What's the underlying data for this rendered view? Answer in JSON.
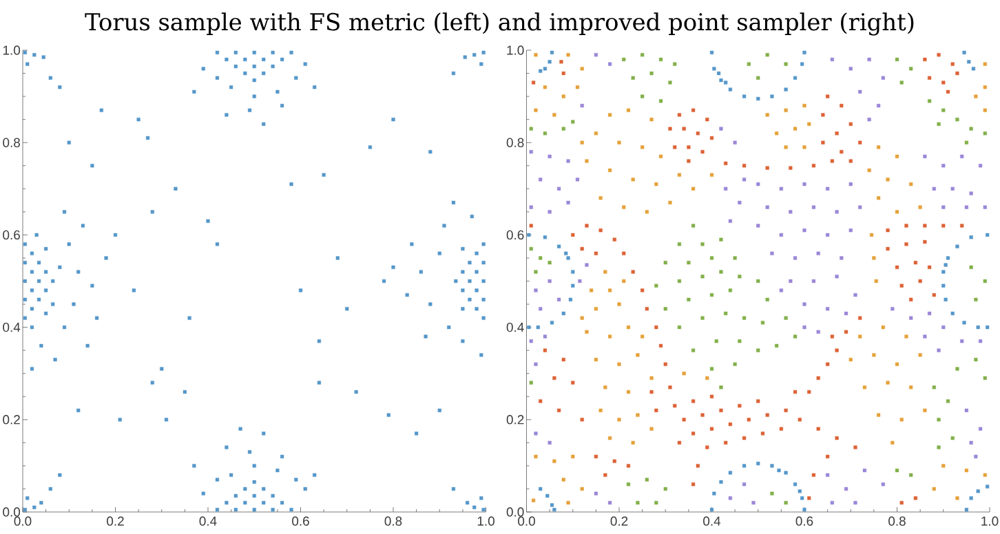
{
  "chart_data": [
    {
      "type": "scatter",
      "title": "Torus sample with FS metric (left) and improved point sampler (right)",
      "xlim": [
        0,
        1
      ],
      "ylim": [
        0,
        1
      ],
      "marker": "square",
      "xticks": [
        {
          "value": 0,
          "label": "0.0"
        },
        {
          "value": 0.05,
          "label": null
        },
        {
          "value": 0.1,
          "label": null
        },
        {
          "value": 0.15,
          "label": null
        },
        0.2,
        {
          "value": 0.25,
          "label": null
        },
        {
          "value": 0.3,
          "label": null
        },
        {
          "value": 0.35,
          "label": null
        },
        0.4,
        {
          "value": 0.45,
          "label": null
        },
        {
          "value": 0.5,
          "label": null
        },
        {
          "value": 0.55,
          "label": null
        },
        0.6,
        {
          "value": 0.65,
          "label": null
        },
        {
          "value": 0.7,
          "label": null
        },
        {
          "value": 0.75,
          "label": null
        },
        0.8,
        {
          "value": 0.85,
          "label": null
        },
        {
          "value": 0.9,
          "label": null
        },
        {
          "value": 0.95,
          "label": null
        },
        {
          "value": 1,
          "label": "1.0"
        }
      ],
      "yticks": [
        {
          "value": 0,
          "label": "0.0"
        },
        {
          "value": 0.05,
          "label": null
        },
        {
          "value": 0.1,
          "label": null
        },
        {
          "value": 0.15,
          "label": null
        },
        0.2,
        {
          "value": 0.25,
          "label": null
        },
        {
          "value": 0.3,
          "label": null
        },
        {
          "value": 0.35,
          "label": null
        },
        0.4,
        {
          "value": 0.45,
          "label": null
        },
        {
          "value": 0.5,
          "label": null
        },
        {
          "value": 0.55,
          "label": null
        },
        0.6,
        {
          "value": 0.65,
          "label": null
        },
        {
          "value": 0.7,
          "label": null
        },
        {
          "value": 0.75,
          "label": null
        },
        0.8,
        {
          "value": 0.85,
          "label": null
        },
        {
          "value": 0.9,
          "label": null
        },
        {
          "value": 0.95,
          "label": null
        },
        {
          "value": 1,
          "label": "1.0"
        }
      ],
      "series": [
        {
          "color": "#5597CA",
          "x": [
            0.005,
            0.005,
            0.005,
            0.005,
            0.005,
            0.02,
            0.02,
            0.02,
            0.02,
            0.035,
            0.035,
            0.035,
            0.05,
            0.05,
            0.05,
            0.05,
            0.065,
            0.065,
            0.08,
            0.02,
            0.03,
            0.1,
            0.12,
            0.11,
            0.15,
            0.09,
            0.13,
            0.04,
            0.18,
            0.16,
            0.07,
            0.2,
            0.14,
            0.02,
            0.24,
            0.09,
            0.995,
            0.995,
            0.995,
            0.995,
            0.995,
            0.98,
            0.98,
            0.98,
            0.98,
            0.965,
            0.965,
            0.965,
            0.95,
            0.95,
            0.935,
            0.95,
            0.95,
            0.9,
            0.88,
            0.86,
            0.91,
            0.92,
            0.84,
            0.83,
            0.95,
            0.97,
            0.8,
            0.87,
            0.78,
            0.93,
            0.99,
            0.5,
            0.46,
            0.54,
            0.42,
            0.58,
            0.48,
            0.52,
            0.44,
            0.56,
            0.5,
            0.46,
            0.54,
            0.48,
            0.52,
            0.5,
            0.45,
            0.55,
            0.5,
            0.42,
            0.59,
            0.39,
            0.61,
            0.49,
            0.56,
            0.44,
            0.63,
            0.37,
            0.52,
            0.5,
            0.46,
            0.54,
            0.42,
            0.58,
            0.48,
            0.52,
            0.44,
            0.56,
            0.5,
            0.46,
            0.54,
            0.48,
            0.52,
            0.5,
            0.45,
            0.55,
            0.5,
            0.42,
            0.59,
            0.39,
            0.61,
            0.49,
            0.56,
            0.44,
            0.63,
            0.37,
            0.47,
            0.52,
            0.005,
            0.025,
            0.01,
            0.04,
            0.06,
            0.08,
            0.995,
            0.975,
            0.99,
            0.96,
            0.93,
            0.005,
            0.025,
            0.01,
            0.045,
            0.06,
            0.08,
            0.995,
            0.975,
            0.99,
            0.955,
            0.93,
            0.3,
            0.28,
            0.35,
            0.21,
            0.25,
            0.17,
            0.27,
            0.33,
            0.28,
            0.4,
            0.42,
            0.6,
            0.64,
            0.7,
            0.68,
            0.72,
            0.79,
            0.85,
            0.65,
            0.58,
            0.8,
            0.75,
            0.36,
            0.31,
            0.64,
            0.12,
            0.9,
            0.88,
            0.15,
            0.1
          ],
          "values": [
            0.5,
            0.46,
            0.54,
            0.42,
            0.58,
            0.48,
            0.52,
            0.44,
            0.56,
            0.5,
            0.46,
            0.54,
            0.48,
            0.52,
            0.43,
            0.57,
            0.5,
            0.45,
            0.53,
            0.4,
            0.6,
            0.58,
            0.52,
            0.45,
            0.49,
            0.4,
            0.62,
            0.36,
            0.55,
            0.42,
            0.33,
            0.6,
            0.36,
            0.31,
            0.48,
            0.65,
            0.5,
            0.46,
            0.54,
            0.42,
            0.58,
            0.48,
            0.52,
            0.44,
            0.56,
            0.5,
            0.46,
            0.54,
            0.48,
            0.52,
            0.5,
            0.44,
            0.57,
            0.56,
            0.45,
            0.52,
            0.62,
            0.4,
            0.58,
            0.47,
            0.37,
            0.64,
            0.53,
            0.38,
            0.5,
            0.67,
            0.34,
            0.995,
            0.995,
            0.995,
            0.995,
            0.995,
            0.98,
            0.98,
            0.98,
            0.98,
            0.965,
            0.965,
            0.965,
            0.95,
            0.95,
            0.935,
            0.92,
            0.91,
            0.9,
            0.94,
            0.94,
            0.96,
            0.97,
            0.87,
            0.88,
            0.86,
            0.92,
            0.91,
            0.84,
            0.005,
            0.005,
            0.005,
            0.005,
            0.005,
            0.02,
            0.02,
            0.02,
            0.02,
            0.035,
            0.035,
            0.035,
            0.05,
            0.05,
            0.065,
            0.08,
            0.09,
            0.1,
            0.07,
            0.07,
            0.04,
            0.05,
            0.13,
            0.12,
            0.14,
            0.08,
            0.1,
            0.18,
            0.17,
            0.005,
            0.01,
            0.03,
            0.02,
            0.05,
            0.08,
            0.005,
            0.01,
            0.03,
            0.02,
            0.05,
            0.995,
            0.99,
            0.97,
            0.985,
            0.94,
            0.92,
            0.995,
            0.99,
            0.97,
            0.985,
            0.95,
            0.31,
            0.28,
            0.26,
            0.2,
            0.85,
            0.87,
            0.81,
            0.7,
            0.65,
            0.63,
            0.58,
            0.48,
            0.37,
            0.44,
            0.55,
            0.26,
            0.21,
            0.17,
            0.73,
            0.71,
            0.85,
            0.79,
            0.42,
            0.2,
            0.28,
            0.22,
            0.22,
            0.78,
            0.75,
            0.8
          ]
        }
      ]
    },
    {
      "type": "scatter",
      "xlim": [
        0,
        1
      ],
      "ylim": [
        0,
        1
      ],
      "marker": "square",
      "xticks": [
        {
          "value": 0,
          "label": "0.0"
        },
        {
          "value": 0.05,
          "label": null
        },
        {
          "value": 0.1,
          "label": null
        },
        {
          "value": 0.15,
          "label": null
        },
        0.2,
        {
          "value": 0.25,
          "label": null
        },
        {
          "value": 0.3,
          "label": null
        },
        {
          "value": 0.35,
          "label": null
        },
        0.4,
        {
          "value": 0.45,
          "label": null
        },
        {
          "value": 0.5,
          "label": null
        },
        {
          "value": 0.55,
          "label": null
        },
        0.6,
        {
          "value": 0.65,
          "label": null
        },
        {
          "value": 0.7,
          "label": null
        },
        {
          "value": 0.75,
          "label": null
        },
        0.8,
        {
          "value": 0.85,
          "label": null
        },
        {
          "value": 0.9,
          "label": null
        },
        {
          "value": 0.95,
          "label": null
        },
        {
          "value": 1,
          "label": "1.0"
        }
      ],
      "yticks": [
        {
          "value": 0,
          "label": "0.0"
        },
        {
          "value": 0.05,
          "label": null
        },
        {
          "value": 0.1,
          "label": null
        },
        {
          "value": 0.15,
          "label": null
        },
        0.2,
        {
          "value": 0.25,
          "label": null
        },
        {
          "value": 0.3,
          "label": null
        },
        {
          "value": 0.35,
          "label": null
        },
        0.4,
        {
          "value": 0.45,
          "label": null
        },
        {
          "value": 0.5,
          "label": null
        },
        {
          "value": 0.55,
          "label": null
        },
        0.6,
        {
          "value": 0.65,
          "label": null
        },
        {
          "value": 0.7,
          "label": null
        },
        {
          "value": 0.75,
          "label": null
        },
        0.8,
        {
          "value": 0.85,
          "label": null
        },
        {
          "value": 0.9,
          "label": null
        },
        {
          "value": 0.95,
          "label": null
        },
        {
          "value": 1,
          "label": "1.0"
        }
      ],
      "series": [
        {
          "color": "#5597CA",
          "x": [
            0.4,
            0.405,
            0.42,
            0.44,
            0.47,
            0.5,
            0.53,
            0.56,
            0.58,
            0.595,
            0.6,
            0.415,
            0.43,
            0.4,
            0.405,
            0.42,
            0.44,
            0.47,
            0.5,
            0.53,
            0.56,
            0.58,
            0.595,
            0.6,
            0.545,
            0.59,
            0.005,
            0.04,
            0.07,
            0.09,
            0.1,
            0.1,
            0.095,
            0.08,
            0.055,
            0.025,
            0.005,
            0.085,
            0.995,
            0.96,
            0.93,
            0.91,
            0.9,
            0.9,
            0.905,
            0.92,
            0.945,
            0.975,
            0.995,
            0.905,
            0.03,
            0.045,
            0.055,
            0.06,
            0.055,
            0.05,
            0.04,
            0.03,
            0.95,
            0.96,
            0.975,
            0.995,
            0.945,
            0.955,
            0.965
          ],
          "values": [
            0.995,
            0.96,
            0.935,
            0.915,
            0.9,
            0.895,
            0.9,
            0.915,
            0.94,
            0.97,
            0.995,
            0.95,
            0.93,
            0.005,
            0.04,
            0.065,
            0.085,
            0.1,
            0.105,
            0.1,
            0.085,
            0.06,
            0.03,
            0.005,
            0.09,
            0.045,
            0.6,
            0.595,
            0.575,
            0.55,
            0.52,
            0.49,
            0.46,
            0.43,
            0.41,
            0.4,
            0.4,
            0.56,
            0.6,
            0.595,
            0.575,
            0.55,
            0.52,
            0.49,
            0.46,
            0.43,
            0.41,
            0.4,
            0.4,
            0.535,
            0.05,
            0.035,
            0.015,
            0.005,
            0.995,
            0.975,
            0.96,
            0.955,
            0.005,
            0.03,
            0.045,
            0.055,
            0.995,
            0.975,
            0.96
          ]
        },
        {
          "color": "#E5A13A",
          "x": [
            0.02,
            0.09,
            0.12,
            0.04,
            0.08,
            0.02,
            0.06,
            0.11,
            0.22,
            0.18,
            0.27,
            0.12,
            0.15,
            0.2,
            0.25,
            0.29,
            0.13,
            0.18,
            0.23,
            0.28,
            0.33,
            0.16,
            0.21,
            0.26,
            0.31,
            0.36,
            0.4,
            0.14,
            0.17,
            0.21,
            0.12,
            0.15,
            0.2,
            0.18,
            0.13,
            0.18,
            0.22,
            0.25,
            0.15,
            0.2,
            0.24,
            0.17,
            0.22,
            0.27,
            0.16,
            0.2,
            0.24,
            0.18,
            0.23,
            0.27,
            0.02,
            0.06,
            0.1,
            0.08,
            0.12,
            0.015,
            0.09,
            0.34,
            0.39,
            0.52,
            0.56,
            0.6,
            0.54,
            0.58,
            0.61,
            0.56,
            0.6,
            0.76,
            0.8,
            0.74,
            0.78,
            0.83,
            0.76,
            0.85,
            0.8,
            0.99,
            0.99,
            0.97,
            0.99,
            0.745,
            0.75,
            0.755,
            0.72,
            0.77,
            0.82,
            0.7,
            0.75,
            0.8,
            0.85,
            0.73,
            0.78,
            0.83,
            0.76,
            0.81,
            0.86,
            0.79,
            0.9,
            0.95,
            0.88,
            0.93,
            0.99
          ],
          "values": [
            0.99,
            0.99,
            0.96,
            0.92,
            0.9,
            0.87,
            0.86,
            0.92,
            0.87,
            0.86,
            0.85,
            0.8,
            0.82,
            0.8,
            0.79,
            0.77,
            0.76,
            0.74,
            0.72,
            0.71,
            0.73,
            0.68,
            0.66,
            0.65,
            0.67,
            0.7,
            0.73,
            0.48,
            0.52,
            0.5,
            0.42,
            0.44,
            0.45,
            0.48,
            0.39,
            0.38,
            0.4,
            0.38,
            0.33,
            0.32,
            0.34,
            0.27,
            0.26,
            0.29,
            0.22,
            0.2,
            0.21,
            0.16,
            0.15,
            0.18,
            0.12,
            0.11,
            0.12,
            0.07,
            0.05,
            0.025,
            0.02,
            0.3,
            0.29,
            0.86,
            0.87,
            0.88,
            0.82,
            0.83,
            0.84,
            0.79,
            0.79,
            0.79,
            0.77,
            0.74,
            0.72,
            0.71,
            0.68,
            0.66,
            0.65,
            0.97,
            0.92,
            0.9,
            0.87,
            0.6,
            0.55,
            0.5,
            0.38,
            0.4,
            0.38,
            0.33,
            0.34,
            0.32,
            0.34,
            0.27,
            0.28,
            0.27,
            0.21,
            0.2,
            0.22,
            0.15,
            0.1,
            0.09,
            0.05,
            0.03,
            0.08
          ]
        },
        {
          "color": "#82B04A",
          "x": [
            0.21,
            0.25,
            0.29,
            0.32,
            0.23,
            0.27,
            0.31,
            0.25,
            0.29,
            0.01,
            0.04,
            0.08,
            0.1,
            0.01,
            0.03,
            0.05,
            0.02,
            0.36,
            0.33,
            0.38,
            0.42,
            0.3,
            0.35,
            0.4,
            0.45,
            0.28,
            0.33,
            0.38,
            0.42,
            0.46,
            0.5,
            0.3,
            0.35,
            0.4,
            0.44,
            0.52,
            0.56,
            0.33,
            0.38,
            0.43,
            0.47,
            0.51,
            0.58,
            0.36,
            0.41,
            0.46,
            0.5,
            0.54,
            0.4,
            0.45,
            0.42,
            0.48,
            0.52,
            0.56,
            0.5,
            0.8,
            0.83,
            0.81,
            0.87,
            0.9,
            0.93,
            0.96,
            0.99,
            0.89,
            0.95,
            0.96,
            0.99,
            0.97,
            0.88,
            0.91,
            0.89,
            0.92,
            0.89,
            0.93,
            0.97,
            0.99,
            0.8,
            0.83,
            0.22,
            0.26,
            0.3,
            0.24,
            0.28,
            0.53,
            0.56,
            0.01
          ],
          "values": [
            0.98,
            0.99,
            0.98,
            0.97,
            0.94,
            0.95,
            0.93,
            0.9,
            0.89,
            0.83,
            0.82,
            0.83,
            0.845,
            0.57,
            0.55,
            0.54,
            0.52,
            0.62,
            0.58,
            0.58,
            0.59,
            0.54,
            0.54,
            0.55,
            0.55,
            0.49,
            0.5,
            0.51,
            0.52,
            0.51,
            0.5,
            0.44,
            0.46,
            0.47,
            0.48,
            0.46,
            0.42,
            0.4,
            0.42,
            0.43,
            0.42,
            0.41,
            0.38,
            0.35,
            0.37,
            0.37,
            0.35,
            0.36,
            0.31,
            0.32,
            0.27,
            0.97,
            0.99,
            0.97,
            0.94,
            0.98,
            0.96,
            0.93,
            0.89,
            0.87,
            0.85,
            0.83,
            0.82,
            0.84,
            0.8,
            0.53,
            0.5,
            0.46,
            0.27,
            0.24,
            0.2,
            0.16,
            0.14,
            0.31,
            0.33,
            0.29,
            0.09,
            0.08,
            0.06,
            0.07,
            0.05,
            0.02,
            0.02,
            0.04,
            0.02,
            0.28
          ]
        },
        {
          "color": "#DD6236",
          "x": [
            0.075,
            0.08,
            0.015,
            0.33,
            0.36,
            0.39,
            0.31,
            0.34,
            0.37,
            0.4,
            0.32,
            0.35,
            0.38,
            0.35,
            0.43,
            0.47,
            0.52,
            0.57,
            0.62,
            0.66,
            0.64,
            0.67,
            0.7,
            0.68,
            0.72,
            0.7,
            0.65,
            0.68,
            0.64,
            0.86,
            0.89,
            0.92,
            0.87,
            0.9,
            0.93,
            0.91,
            0.01,
            0.1,
            0.13,
            0.16,
            0.19,
            0.12,
            0.15,
            0.21,
            0.23,
            0.25,
            0.26,
            0.28,
            0.29,
            0.3,
            0.04,
            0.08,
            0.06,
            0.1,
            0.03,
            0.07,
            0.12,
            0.15,
            0.19,
            0.17,
            0.22,
            0.27,
            0.31,
            0.28,
            0.32,
            0.36,
            0.4,
            0.34,
            0.38,
            0.42,
            0.46,
            0.5,
            0.36,
            0.4,
            0.44,
            0.48,
            0.52,
            0.56,
            0.39,
            0.43,
            0.47,
            0.51,
            0.55,
            0.59,
            0.37,
            0.36,
            0.33,
            0.58,
            0.78,
            0.82,
            0.86,
            0.9,
            0.94,
            0.78,
            0.82,
            0.86,
            0.8,
            0.84,
            0.87,
            0.81,
            0.85,
            0.83,
            0.88,
            0.72,
            0.69,
            0.67,
            0.65,
            0.63,
            0.61,
            0.66,
            0.63,
            0.67,
            0.71,
            0.65,
            0.62,
            0.61,
            0.81,
            0.84
          ],
          "values": [
            0.975,
            0.95,
            0.93,
            0.86,
            0.87,
            0.85,
            0.83,
            0.83,
            0.82,
            0.81,
            0.79,
            0.79,
            0.78,
            0.76,
            0.755,
            0.75,
            0.745,
            0.745,
            0.75,
            0.76,
            0.8,
            0.82,
            0.84,
            0.78,
            0.8,
            0.76,
            0.9,
            0.88,
            0.86,
            0.98,
            0.99,
            0.97,
            0.94,
            0.93,
            0.95,
            0.91,
            0.62,
            0.6,
            0.62,
            0.61,
            0.59,
            0.57,
            0.56,
            0.56,
            0.52,
            0.48,
            0.44,
            0.4,
            0.36,
            0.32,
            0.35,
            0.33,
            0.29,
            0.28,
            0.24,
            0.22,
            0.2,
            0.12,
            0.11,
            0.08,
            0.1,
            0.26,
            0.27,
            0.22,
            0.23,
            0.24,
            0.25,
            0.2,
            0.21,
            0.22,
            0.23,
            0.24,
            0.17,
            0.18,
            0.19,
            0.2,
            0.21,
            0.22,
            0.14,
            0.15,
            0.16,
            0.17,
            0.18,
            0.2,
            0.1,
            0.06,
            0.15,
            0.26,
            0.61,
            0.62,
            0.62,
            0.62,
            0.62,
            0.57,
            0.58,
            0.585,
            0.53,
            0.54,
            0.53,
            0.49,
            0.5,
            0.46,
            0.47,
            0.42,
            0.39,
            0.35,
            0.32,
            0.29,
            0.26,
            0.38,
            0.18,
            0.16,
            0.14,
            0.12,
            0.08,
            0.03,
            0.02,
            0.03
          ]
        },
        {
          "color": "#9A87D7",
          "x": [
            0.15,
            0.18,
            0.12,
            0.01,
            0.05,
            0.09,
            0.03,
            0.07,
            0.01,
            0.05,
            0.09,
            0.11,
            0.02,
            0.05,
            0.07,
            0.03,
            0.13,
            0.115,
            0.01,
            0.04,
            0.02,
            0.02,
            0.05,
            0.15,
            0.18,
            0.42,
            0.45,
            0.47,
            0.43,
            0.46,
            0.44,
            0.66,
            0.7,
            0.74,
            0.77,
            0.72,
            0.76,
            0.74,
            0.5,
            0.55,
            0.6,
            0.65,
            0.7,
            0.52,
            0.57,
            0.62,
            0.67,
            0.72,
            0.5,
            0.55,
            0.6,
            0.65,
            0.7,
            0.53,
            0.58,
            0.63,
            0.68,
            0.57,
            0.62,
            0.67,
            0.71,
            0.6,
            0.65,
            0.69,
            0.63,
            0.6,
            0.55,
            0.86,
            0.9,
            0.94,
            0.98,
            0.88,
            0.92,
            0.96,
            0.9,
            0.95,
            0.99,
            0.79,
            0.83,
            0.87,
            0.9,
            0.86,
            0.89,
            0.94,
            0.98,
            0.65,
            0.69,
            0.73,
            0.77,
            0.71,
            0.66,
            0.95,
            0.98,
            0.96,
            0.97,
            0.44,
            0.47,
            0.49
          ],
          "values": [
            0.99,
            0.97,
            0.88,
            0.78,
            0.77,
            0.76,
            0.72,
            0.7,
            0.66,
            0.65,
            0.67,
            0.72,
            0.48,
            0.5,
            0.46,
            0.44,
            0.535,
            0.5,
            0.37,
            0.38,
            0.32,
            0.17,
            0.15,
            0.04,
            0.02,
            0.83,
            0.8,
            0.72,
            0.7,
            0.67,
            0.63,
            0.98,
            0.96,
            0.98,
            0.94,
            0.91,
            0.88,
            0.85,
            0.71,
            0.7,
            0.71,
            0.7,
            0.71,
            0.66,
            0.65,
            0.66,
            0.65,
            0.66,
            0.62,
            0.6,
            0.61,
            0.6,
            0.61,
            0.56,
            0.55,
            0.56,
            0.55,
            0.5,
            0.5,
            0.51,
            0.47,
            0.45,
            0.44,
            0.43,
            0.39,
            0.4,
            0.48,
            0.77,
            0.75,
            0.77,
            0.75,
            0.7,
            0.7,
            0.69,
            0.66,
            0.66,
            0.66,
            0.44,
            0.42,
            0.43,
            0.4,
            0.38,
            0.35,
            0.37,
            0.37,
            0.08,
            0.05,
            0.09,
            0.06,
            0.02,
            0.02,
            0.22,
            0.18,
            0.15,
            0.12,
            0.03,
            0.06,
            0.02
          ]
        }
      ]
    }
  ]
}
